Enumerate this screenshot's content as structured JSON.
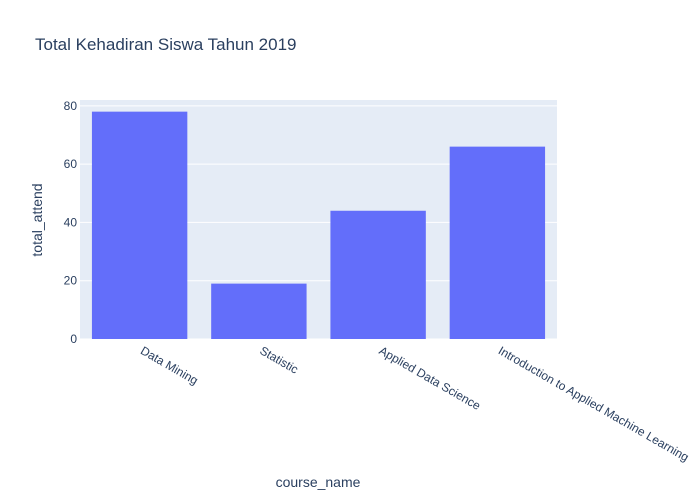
{
  "chart_data": {
    "type": "bar",
    "title": "Total Kehadiran Siswa Tahun 2019",
    "xlabel": "course_name",
    "ylabel": "total_attend",
    "categories": [
      "Data Mining",
      "Statistic",
      "Applied Data Science",
      "Introduction to Applied Machine Learning"
    ],
    "values": [
      78,
      19,
      44,
      66
    ],
    "ylim": [
      0,
      82
    ],
    "yticks": [
      0,
      20,
      40,
      60,
      80
    ],
    "grid": true,
    "legend": "none",
    "colors": {
      "bar": "#636efa",
      "plot_background": "#e5ecf6",
      "grid": "#ffffff",
      "text": "#2a3f5f"
    }
  }
}
